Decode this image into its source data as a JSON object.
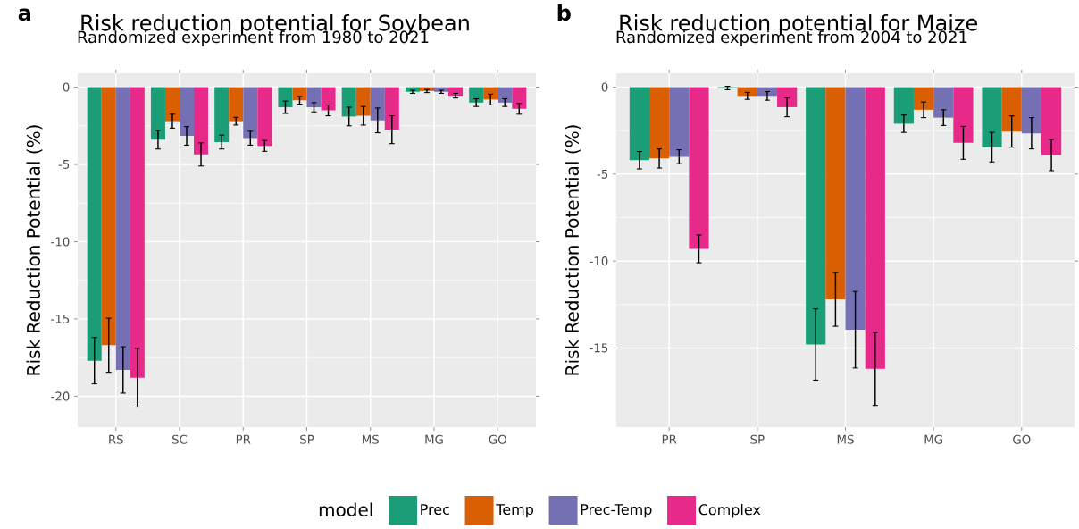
{
  "chart_data": [
    {
      "type": "bar",
      "title": "Risk reduction potential for Soybean",
      "subtitle": "Randomized experiment from 1980 to 2021",
      "ylabel": "Risk Reduction Potential (%)",
      "annotations": [
        "a"
      ],
      "legend_title": "model",
      "legend": "bottom",
      "grid": true,
      "categories": [
        "RS",
        "SC",
        "PR",
        "SP",
        "MS",
        "MG",
        "GO"
      ],
      "ylim": [
        -22,
        0.9
      ],
      "yticks": [
        0,
        -5,
        -10,
        -15,
        -20
      ],
      "series": [
        {
          "name": "Prec",
          "color": "#1b9e77",
          "values": [
            -17.7,
            -3.4,
            -3.55,
            -1.3,
            -1.9,
            -0.3,
            -1.0
          ],
          "errors": [
            1.5,
            0.6,
            0.45,
            0.4,
            0.6,
            0.1,
            0.25
          ]
        },
        {
          "name": "Temp",
          "color": "#d95f02",
          "values": [
            -16.7,
            -2.2,
            -2.2,
            -0.85,
            -1.85,
            -0.25,
            -0.8
          ],
          "errors": [
            1.75,
            0.45,
            0.25,
            0.25,
            0.6,
            0.1,
            0.35
          ]
        },
        {
          "name": "Prec-Temp",
          "color": "#7570b3",
          "values": [
            -18.3,
            -3.15,
            -3.3,
            -1.3,
            -2.15,
            -0.3,
            -1.0
          ],
          "errors": [
            1.5,
            0.6,
            0.45,
            0.3,
            0.8,
            0.1,
            0.25
          ]
        },
        {
          "name": "Complex",
          "color": "#e7298a",
          "values": [
            -18.8,
            -4.35,
            -3.8,
            -1.5,
            -2.75,
            -0.55,
            -1.4
          ],
          "errors": [
            1.9,
            0.75,
            0.35,
            0.35,
            0.9,
            0.15,
            0.35
          ]
        }
      ]
    },
    {
      "type": "bar",
      "title": "Risk reduction potential for Maize",
      "subtitle": "Randomized experiment from 2004 to 2021",
      "ylabel": "Risk Reduction Potential (%)",
      "annotations": [
        "b"
      ],
      "grid": true,
      "categories": [
        "PR",
        "SP",
        "MS",
        "MG",
        "GO"
      ],
      "ylim": [
        -19.55,
        0.8
      ],
      "yticks": [
        0,
        -5,
        -10,
        -15
      ],
      "series": [
        {
          "color": "#1b9e77",
          "values": [
            -4.2,
            -0.05,
            -14.8,
            -2.1,
            -3.45
          ],
          "errors": [
            0.5,
            0.1,
            2.05,
            0.5,
            0.85
          ]
        },
        {
          "color": "#d95f02",
          "values": [
            -4.1,
            -0.5,
            -12.2,
            -1.3,
            -2.55
          ],
          "errors": [
            0.55,
            0.2,
            1.55,
            0.45,
            0.9
          ]
        },
        {
          "color": "#7570b3",
          "values": [
            -4.0,
            -0.5,
            -13.95,
            -1.75,
            -2.65
          ],
          "errors": [
            0.4,
            0.25,
            2.2,
            0.45,
            0.9
          ]
        },
        {
          "color": "#e7298a",
          "values": [
            -9.3,
            -1.15,
            -16.2,
            -3.2,
            -3.9
          ],
          "errors": [
            0.8,
            0.55,
            2.1,
            0.95,
            0.9
          ]
        }
      ]
    }
  ]
}
